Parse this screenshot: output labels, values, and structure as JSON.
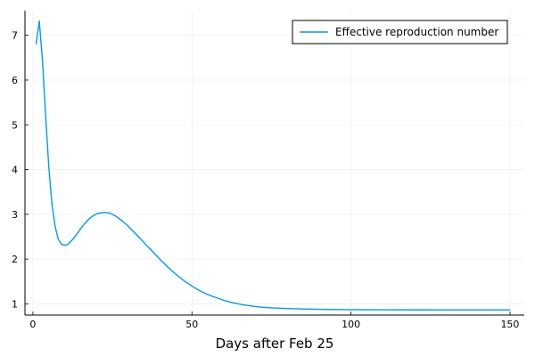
{
  "chart_data": {
    "type": "line",
    "title": "",
    "xlabel": "Days after Feb 25",
    "ylabel": "",
    "xlim": [
      -2.5,
      154.5
    ],
    "ylim": [
      0.75,
      7.55
    ],
    "xticks": [
      0,
      50,
      100,
      150
    ],
    "yticks": [
      1,
      2,
      3,
      4,
      5,
      6,
      7
    ],
    "grid": true,
    "legend_position": "top-right",
    "series": [
      {
        "name": "Effective reproduction number",
        "color": "#009AF9",
        "x": [
          1,
          2,
          3,
          4,
          5,
          6,
          7,
          8,
          9,
          10,
          11,
          12,
          13,
          14,
          15,
          16,
          17,
          18,
          19,
          20,
          21,
          22,
          23,
          24,
          25,
          26,
          28,
          30,
          32,
          34,
          36,
          38,
          40,
          42,
          44,
          46,
          48,
          50,
          52,
          54,
          56,
          58,
          60,
          62,
          64,
          66,
          68,
          70,
          72,
          75,
          80,
          85,
          90,
          95,
          100,
          110,
          120,
          130,
          140,
          150
        ],
        "y": [
          6.8,
          7.32,
          6.45,
          5.2,
          4.05,
          3.22,
          2.72,
          2.44,
          2.33,
          2.31,
          2.33,
          2.4,
          2.48,
          2.58,
          2.68,
          2.77,
          2.85,
          2.92,
          2.97,
          3.01,
          3.03,
          3.04,
          3.04,
          3.03,
          3.0,
          2.96,
          2.86,
          2.73,
          2.59,
          2.44,
          2.29,
          2.14,
          1.99,
          1.85,
          1.72,
          1.6,
          1.49,
          1.4,
          1.31,
          1.24,
          1.18,
          1.13,
          1.08,
          1.04,
          1.01,
          0.98,
          0.96,
          0.94,
          0.925,
          0.91,
          0.895,
          0.885,
          0.878,
          0.873,
          0.87,
          0.868,
          0.867,
          0.866,
          0.866,
          0.866
        ]
      }
    ]
  }
}
